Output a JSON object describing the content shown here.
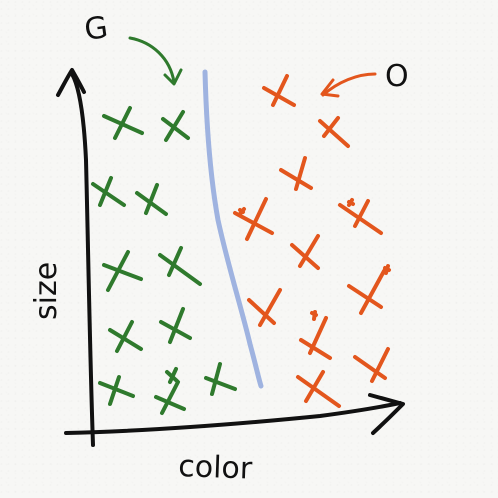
{
  "annotations": {
    "green_label": "G",
    "orange_label": "O"
  },
  "axes": {
    "x_label": "color",
    "y_label": "size"
  },
  "colors": {
    "green": "#2f7a2d",
    "orange": "#e3561d",
    "boundary": "#9fb3e0",
    "axis": "#111111"
  },
  "marks": {
    "green_count": 12,
    "orange_count": 15
  }
}
